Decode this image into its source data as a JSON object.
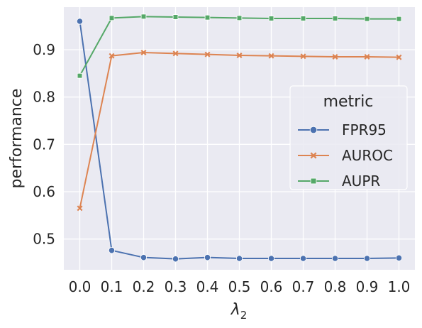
{
  "chart_data": {
    "type": "line",
    "ylabel": "performance",
    "xlabel_symbol": "λ",
    "xlabel_subscript": "2",
    "x": [
      0.0,
      0.1,
      0.2,
      0.3,
      0.4,
      0.5,
      0.6,
      0.7,
      0.8,
      0.9,
      1.0
    ],
    "x_tick_labels": [
      "0.0",
      "0.1",
      "0.2",
      "0.3",
      "0.4",
      "0.5",
      "0.6",
      "0.7",
      "0.8",
      "0.9",
      "1.0"
    ],
    "xlim": [
      -0.05,
      1.05
    ],
    "y_ticks": [
      0.5,
      0.6,
      0.7,
      0.8,
      0.9
    ],
    "y_tick_labels": [
      "0.5",
      "0.6",
      "0.7",
      "0.8",
      "0.9"
    ],
    "ylim": [
      0.435,
      0.99
    ],
    "grid": true,
    "background": "#eaeaf2",
    "legend": {
      "title": "metric",
      "placement": "center-right"
    },
    "series": [
      {
        "name": "FPR95",
        "color": "#4c72b0",
        "marker": "circle",
        "values": [
          0.96,
          0.476,
          0.461,
          0.458,
          0.461,
          0.459,
          0.459,
          0.459,
          0.459,
          0.459,
          0.46
        ]
      },
      {
        "name": "AUROC",
        "color": "#dd8452",
        "marker": "x",
        "values": [
          0.565,
          0.887,
          0.894,
          0.892,
          0.89,
          0.888,
          0.887,
          0.886,
          0.885,
          0.885,
          0.884
        ]
      },
      {
        "name": "AUPR",
        "color": "#55a868",
        "marker": "square",
        "values": [
          0.845,
          0.967,
          0.97,
          0.969,
          0.968,
          0.967,
          0.966,
          0.966,
          0.966,
          0.965,
          0.965
        ]
      }
    ]
  }
}
